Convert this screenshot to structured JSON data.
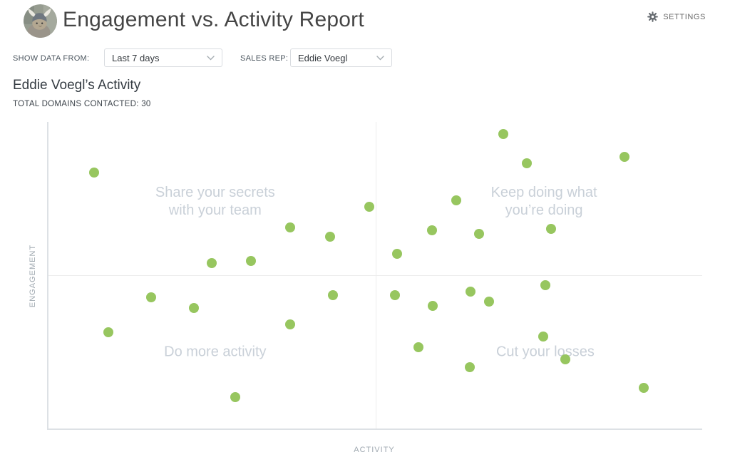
{
  "header": {
    "title": "Engagement vs. Activity Report",
    "settings_label": "SETTINGS"
  },
  "filters": {
    "show_data_from": {
      "label": "SHOW DATA FROM:",
      "value": "Last 7 days"
    },
    "sales_rep": {
      "label": "SALES REP:",
      "value": "Eddie Voegl"
    }
  },
  "report": {
    "heading": "Eddie Voegl’s Activity",
    "total_domains_label": "TOTAL DOMAINS CONTACTED:",
    "total_domains_value": "30"
  },
  "chart_data": {
    "type": "scatter",
    "xlabel": "ACTIVITY",
    "ylabel": "ENGAGEMENT",
    "x_range": [
      0,
      100
    ],
    "y_range": [
      0,
      100
    ],
    "grid": "quadrant-crosshair",
    "legend": "none",
    "point_color": "#97c65f",
    "total_points": 30,
    "quadrants": [
      {
        "position": "top-left",
        "lines": [
          "Share your secrets",
          "with your team"
        ]
      },
      {
        "position": "top-right",
        "lines": [
          "Keep doing what",
          "you’re doing"
        ]
      },
      {
        "position": "bottom-left",
        "lines": [
          "Do more activity"
        ]
      },
      {
        "position": "bottom-right",
        "lines": [
          "Cut your losses"
        ]
      }
    ],
    "points": [
      [
        7.0,
        83.6
      ],
      [
        49.1,
        72.3
      ],
      [
        37.0,
        65.6
      ],
      [
        43.1,
        62.6
      ],
      [
        25.0,
        54.0
      ],
      [
        31.0,
        54.7
      ],
      [
        69.6,
        96.1
      ],
      [
        73.2,
        86.4
      ],
      [
        88.1,
        88.5
      ],
      [
        62.4,
        74.4
      ],
      [
        58.7,
        64.7
      ],
      [
        65.9,
        63.5
      ],
      [
        76.9,
        65.1
      ],
      [
        53.3,
        57.0
      ],
      [
        15.7,
        42.7
      ],
      [
        22.2,
        39.3
      ],
      [
        9.2,
        31.4
      ],
      [
        43.5,
        43.6
      ],
      [
        37.0,
        33.9
      ],
      [
        28.6,
        10.2
      ],
      [
        53.0,
        43.6
      ],
      [
        58.8,
        40.0
      ],
      [
        64.6,
        44.6
      ],
      [
        67.4,
        41.3
      ],
      [
        76.0,
        46.7
      ],
      [
        75.7,
        30.0
      ],
      [
        56.6,
        26.6
      ],
      [
        79.1,
        22.6
      ],
      [
        64.4,
        19.9
      ],
      [
        91.1,
        13.2
      ]
    ]
  }
}
